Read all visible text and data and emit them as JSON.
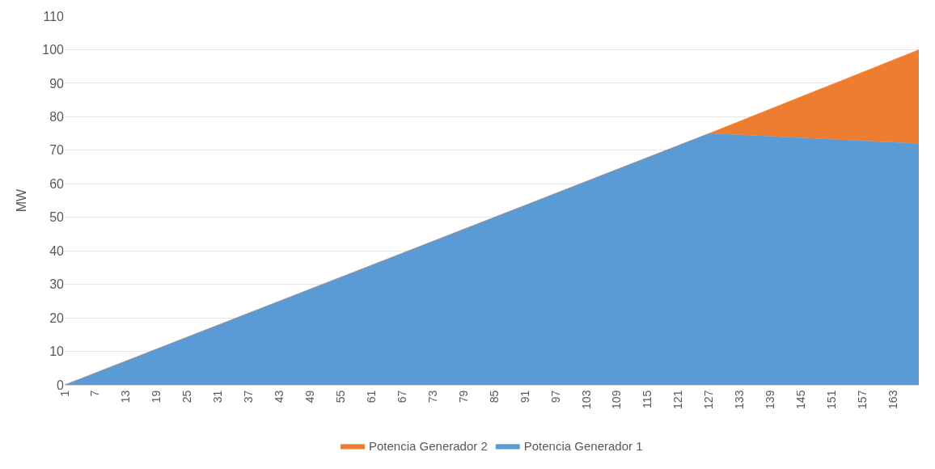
{
  "chart_data": {
    "type": "area",
    "stacked": true,
    "ylabel": "MW",
    "x": [
      1,
      127,
      168
    ],
    "series": [
      {
        "name": "Potencia Generador 1",
        "color": "#5b9bd5",
        "values": [
          0,
          75,
          72
        ]
      },
      {
        "name": "Potencia Generador 2",
        "color": "#ed7d31",
        "values": [
          0,
          0,
          28
        ]
      }
    ],
    "xlim": [
      1,
      168
    ],
    "xticks": [
      1,
      7,
      13,
      19,
      25,
      31,
      37,
      43,
      49,
      55,
      61,
      67,
      73,
      79,
      85,
      91,
      97,
      103,
      109,
      115,
      121,
      127,
      133,
      139,
      145,
      151,
      157,
      163
    ],
    "ylim": [
      0,
      110
    ],
    "yticks": [
      0,
      10,
      20,
      30,
      40,
      50,
      60,
      70,
      80,
      90,
      100,
      110
    ],
    "grid": "y",
    "legend": "bottom"
  }
}
